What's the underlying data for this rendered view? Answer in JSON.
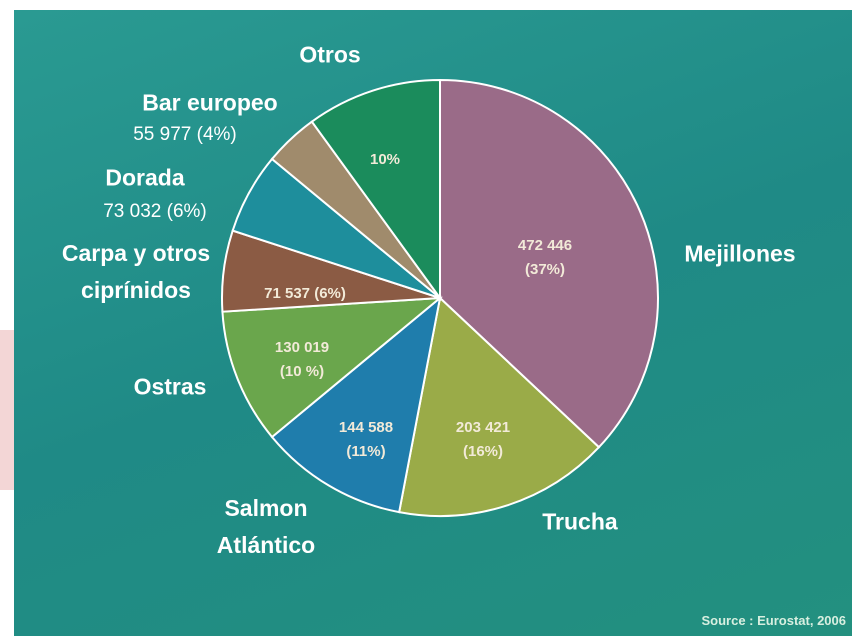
{
  "chart_data": {
    "type": "pie",
    "categories": [
      "Mejillones",
      "Trucha",
      "Salmon Atlántico",
      "Ostras",
      "Carpa y otros ciprínidos",
      "Dorada",
      "Bar europeo",
      "Otros"
    ],
    "values": [
      37,
      16,
      11,
      10,
      6,
      6,
      4,
      10
    ],
    "value_labels": [
      "(37%)",
      "(16%)",
      "(11%)",
      "(10 %)",
      "(6%)",
      "(6%)",
      "(4%)",
      "10%"
    ],
    "amounts": [
      472446,
      203421,
      144588,
      130019,
      71537,
      73032,
      55977,
      null
    ],
    "amount_labels": [
      "472 446",
      "203 421",
      "144 588",
      "130 019",
      "71 537",
      "73 032",
      "55 977",
      null
    ],
    "colors": [
      "#9a6b88",
      "#9aab48",
      "#1f7dac",
      "#6aa64c",
      "#8b5b44",
      "#1e8e9c",
      "#a08b6c",
      "#1b8c5c"
    ],
    "source": "Source : Eurostat, 2006"
  }
}
